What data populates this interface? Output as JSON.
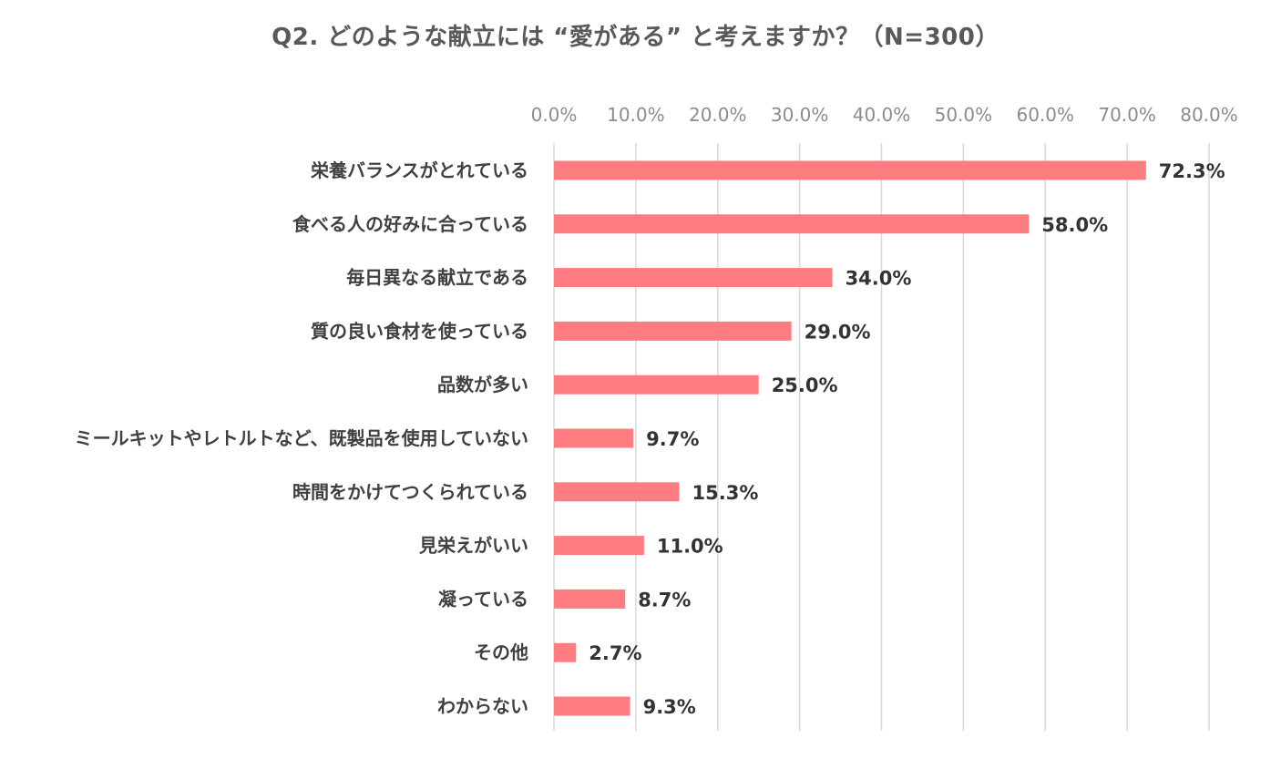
{
  "chart_data": {
    "type": "bar",
    "orientation": "horizontal",
    "title": "Q2. どのような献立には “愛がある” と考えますか？（N=300）",
    "xlabel": "",
    "ylabel": "",
    "xlim": [
      0,
      80
    ],
    "ticks": [
      "0.0%",
      "10.0%",
      "20.0%",
      "30.0%",
      "40.0%",
      "50.0%",
      "60.0%",
      "70.0%",
      "80.0%"
    ],
    "tick_values": [
      0,
      10,
      20,
      30,
      40,
      50,
      60,
      70,
      80
    ],
    "grid": true,
    "axis_position": "top",
    "categories": [
      "栄養バランスがとれている",
      "食べる人の好みに合っている",
      "毎日異なる献立である",
      "質の良い食材を使っている",
      "品数が多い",
      "ミールキットやレトルトなど、既製品を使用していない",
      "時間をかけてつくられている",
      "見栄えがいい",
      "凝っている",
      "その他",
      "わからない"
    ],
    "values": [
      72.3,
      58.0,
      34.0,
      29.0,
      25.0,
      9.7,
      15.3,
      11.0,
      8.7,
      2.7,
      9.3
    ],
    "value_labels": [
      "72.3%",
      "58.0%",
      "34.0%",
      "29.0%",
      "25.0%",
      "9.7%",
      "15.3%",
      "11.0%",
      "8.7%",
      "2.7%",
      "9.3%"
    ],
    "colors": {
      "bar": "#ff7c80",
      "grid": "#d9d9d9",
      "tick_text": "#8c8c8c",
      "category_text": "#404040",
      "value_text": "#333333"
    }
  }
}
